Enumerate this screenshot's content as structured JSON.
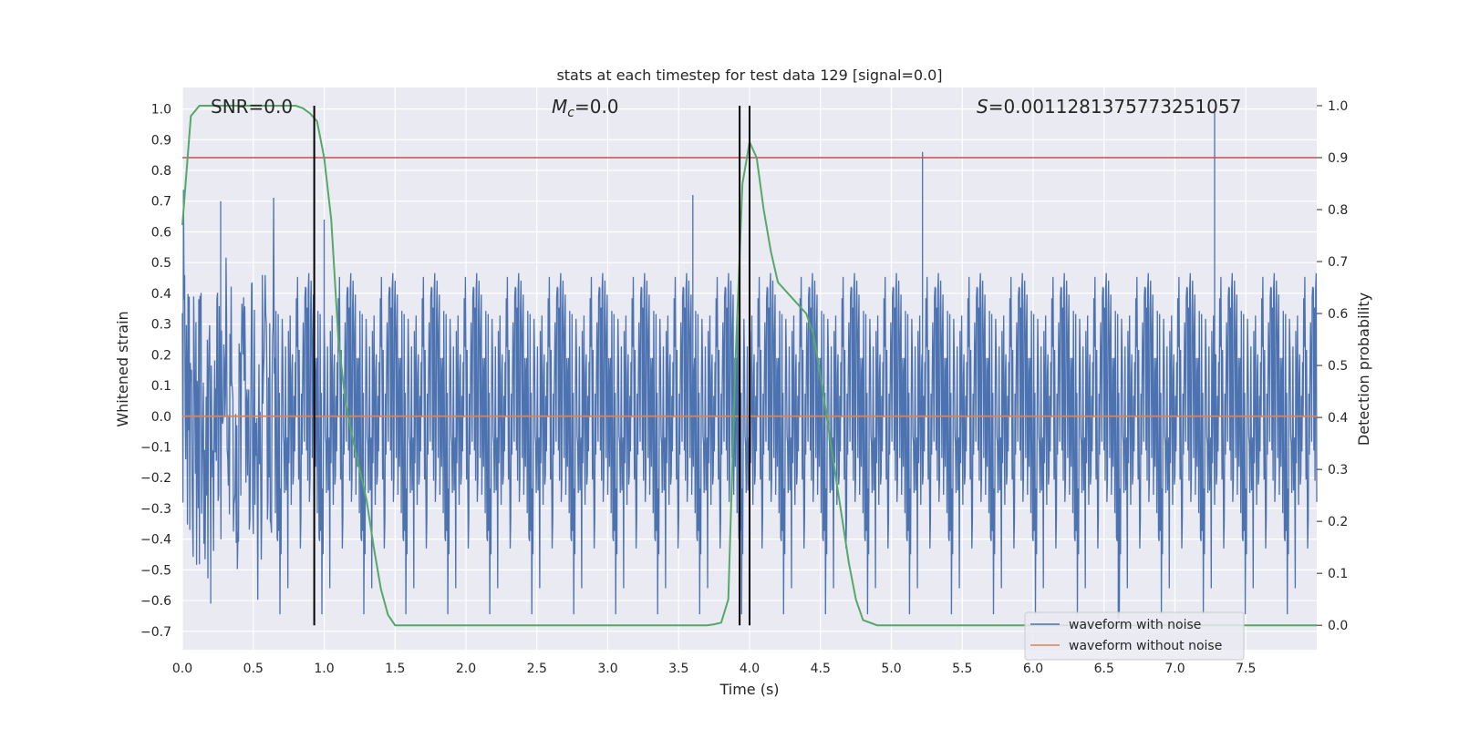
{
  "chart_data": {
    "type": "line",
    "title": "stats at each timestep for test data 129 [signal=0.0]",
    "xlabel": "Time (s)",
    "ylabel": "Whitened strain",
    "y2label": "Detection probability",
    "xlim": [
      0.0,
      8.0
    ],
    "ylim": [
      -0.76,
      1.07
    ],
    "y2lim": [
      -0.047,
      1.035
    ],
    "grid": true,
    "xticks": [
      "0.0",
      "0.5",
      "1.0",
      "1.5",
      "2.0",
      "2.5",
      "3.0",
      "3.5",
      "4.0",
      "4.5",
      "5.0",
      "5.5",
      "6.0",
      "6.5",
      "7.0",
      "7.5"
    ],
    "yticks": [
      "−0.7",
      "−0.6",
      "−0.5",
      "−0.4",
      "−0.3",
      "−0.2",
      "−0.1",
      "0.0",
      "0.1",
      "0.2",
      "0.3",
      "0.4",
      "0.5",
      "0.6",
      "0.7",
      "0.8",
      "0.9",
      "1.0"
    ],
    "y2ticks": [
      "0.0",
      "0.1",
      "0.2",
      "0.3",
      "0.4",
      "0.5",
      "0.6",
      "0.7",
      "0.8",
      "0.9",
      "1.0"
    ],
    "annotations": {
      "snr": "SNR=0.0",
      "mc_symbol": "M",
      "mc_sub": "c",
      "mc_value": "=0.0",
      "s_symbol": "S",
      "s_value": "=0.0011281375773251057"
    },
    "legend": {
      "position": "lower right",
      "entries": [
        "waveform with noise",
        "waveform without noise"
      ]
    },
    "series": [
      {
        "name": "waveform with noise",
        "color": "#4c72b0",
        "style": "dense noise band",
        "typical_range": [
          -0.45,
          0.5
        ],
        "extremes": [
          -0.68,
          1.0
        ]
      },
      {
        "name": "waveform without noise",
        "color": "#dd8452",
        "y_constant": 0.0
      },
      {
        "axis": "right",
        "color": "#55a868",
        "x": [
          0.0,
          0.06,
          0.12,
          0.2,
          0.3,
          0.5,
          0.7,
          0.8,
          0.85,
          0.9,
          0.95,
          1.0,
          1.05,
          1.1,
          1.15,
          1.2,
          1.3,
          1.35,
          1.4,
          1.45,
          1.5,
          2.0,
          2.5,
          3.0,
          3.5,
          3.6,
          3.7,
          3.75,
          3.8,
          3.85,
          3.9,
          3.95,
          4.0,
          4.05,
          4.1,
          4.15,
          4.2,
          4.3,
          4.4,
          4.45,
          4.5,
          4.6,
          4.7,
          4.75,
          4.8,
          4.9,
          5.0,
          6.0,
          7.0,
          8.0
        ],
        "y": [
          0.77,
          0.98,
          1.0,
          1.0,
          1.0,
          1.0,
          1.0,
          1.0,
          0.995,
          0.985,
          0.97,
          0.9,
          0.78,
          0.55,
          0.43,
          0.36,
          0.24,
          0.15,
          0.07,
          0.02,
          0.0,
          0.0,
          0.0,
          0.0,
          0.0,
          0.0,
          0.0,
          0.002,
          0.005,
          0.05,
          0.5,
          0.85,
          0.93,
          0.9,
          0.8,
          0.72,
          0.66,
          0.63,
          0.6,
          0.56,
          0.48,
          0.3,
          0.12,
          0.05,
          0.01,
          0.0,
          0.0,
          0.0,
          0.0,
          0.0
        ]
      },
      {
        "axis": "right",
        "color": "#c44e52",
        "name": "threshold",
        "y_constant": 0.9
      }
    ],
    "vlines": {
      "color": "#000000",
      "x": [
        0.93,
        3.93,
        4.0
      ],
      "y2_range": [
        0.0,
        1.0
      ]
    }
  }
}
